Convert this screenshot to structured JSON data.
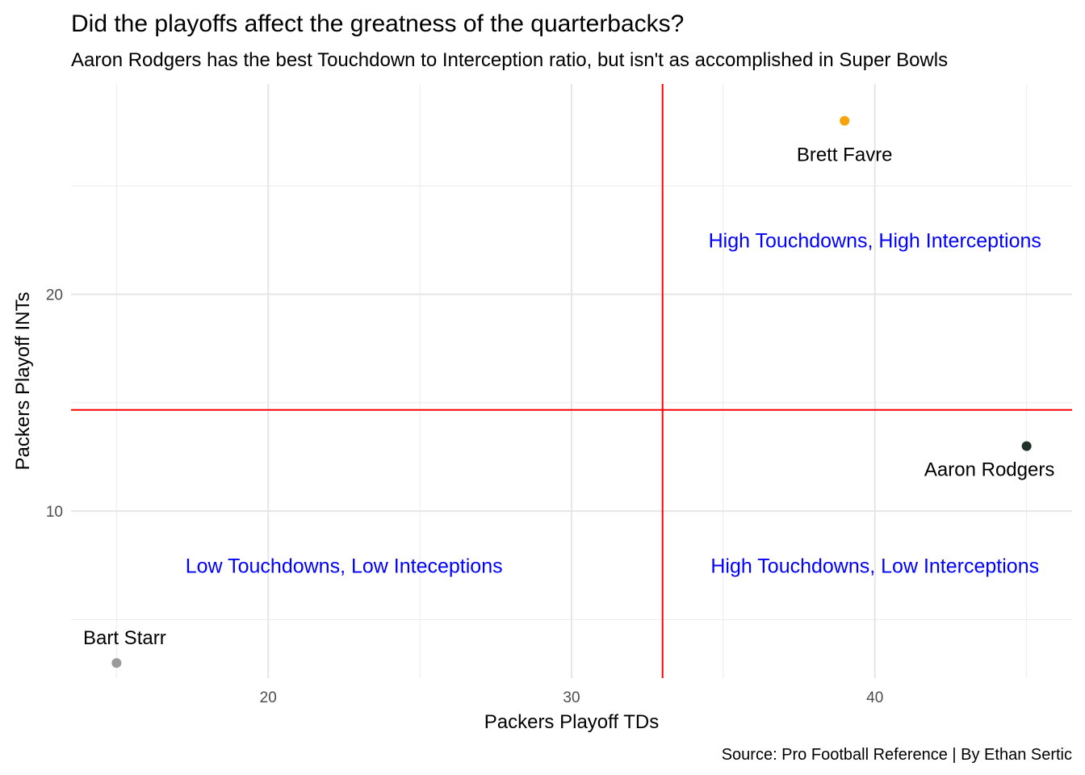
{
  "chart_data": {
    "type": "scatter",
    "title": "Did the playoffs affect the greatness of the quarterbacks?",
    "subtitle": "Aaron Rodgers has the best Touchdown to Interception ratio, but isn't as accomplished in Super Bowls",
    "xlabel": "Packers Playoff TDs",
    "ylabel": "Packers Playoff INTs",
    "caption": "Source: Pro Football Reference | By Ethan Sertic",
    "xlim": [
      13.5,
      46.5
    ],
    "ylim": [
      2.3,
      29.7
    ],
    "x_ticks": [
      20,
      30,
      40
    ],
    "y_ticks": [
      10,
      20
    ],
    "grid": true,
    "points": [
      {
        "name": "Brett Favre",
        "x": 39,
        "y": 28,
        "color": "#f5a30a"
      },
      {
        "name": "Aaron Rodgers",
        "x": 45,
        "y": 13,
        "color": "#1e3329"
      },
      {
        "name": "Bart Starr",
        "x": 15,
        "y": 3,
        "color": "#9a9a9a"
      }
    ],
    "reference_lines": {
      "x": 33,
      "y": 14.67,
      "color": "#ff0000"
    },
    "quadrant_labels": [
      {
        "text": "High Touchdowns, High Interceptions",
        "x": 40,
        "y": 22.5,
        "color": "#0000ff"
      },
      {
        "text": "Low Touchdowns, Low Inteceptions",
        "x": 22.5,
        "y": 7.5,
        "color": "#0000ff"
      },
      {
        "text": "High Touchdowns, Low Interceptions",
        "x": 40,
        "y": 7.5,
        "color": "#0000ff"
      }
    ]
  }
}
